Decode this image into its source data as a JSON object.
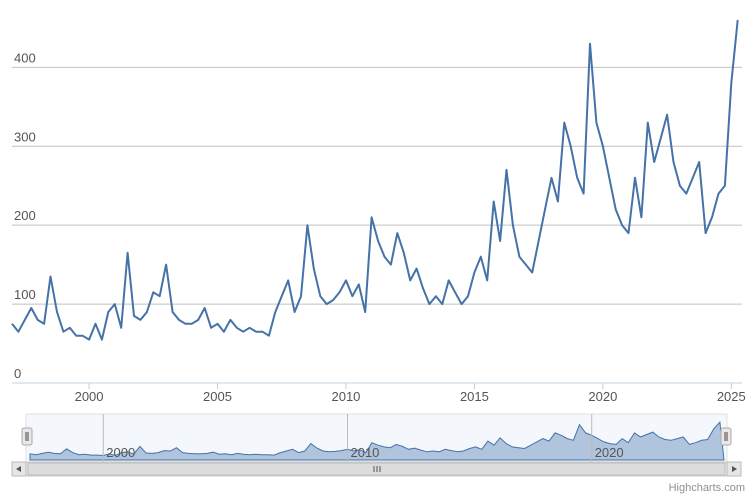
{
  "credits": "Highcharts.com",
  "colors": {
    "line": "#4572A7",
    "grid": "#C0C0C0",
    "navigatorFill": "#B0C4DE",
    "navigatorLine": "#4572A7"
  },
  "chart_data": {
    "type": "line",
    "title": "",
    "xlabel": "",
    "ylabel": "",
    "xlim": [
      "1997-01",
      "2025-06"
    ],
    "ylim": [
      0,
      460
    ],
    "y_ticks": [
      "0",
      "100",
      "200",
      "300",
      "400"
    ],
    "x_ticks": [
      "2000",
      "2005",
      "2010",
      "2015",
      "2020",
      "2025"
    ],
    "grid": true,
    "legend": "none",
    "series": [
      {
        "x": [
          1997.0,
          1997.25,
          1997.5,
          1997.75,
          1998.0,
          1998.25,
          1998.5,
          1998.75,
          1999.0,
          1999.25,
          1999.5,
          1999.75,
          2000.0,
          2000.25,
          2000.5,
          2000.75,
          2001.0,
          2001.25,
          2001.5,
          2001.75,
          2002.0,
          2002.25,
          2002.5,
          2002.75,
          2003.0,
          2003.25,
          2003.5,
          2003.75,
          2004.0,
          2004.25,
          2004.5,
          2004.75,
          2005.0,
          2005.25,
          2005.5,
          2005.75,
          2006.0,
          2006.25,
          2006.5,
          2006.75,
          2007.0,
          2007.25,
          2007.5,
          2007.75,
          2008.0,
          2008.25,
          2008.5,
          2008.75,
          2009.0,
          2009.25,
          2009.5,
          2009.75,
          2010.0,
          2010.25,
          2010.5,
          2010.75,
          2011.0,
          2011.25,
          2011.5,
          2011.75,
          2012.0,
          2012.25,
          2012.5,
          2012.75,
          2013.0,
          2013.25,
          2013.5,
          2013.75,
          2014.0,
          2014.25,
          2014.5,
          2014.75,
          2015.0,
          2015.25,
          2015.5,
          2015.75,
          2016.0,
          2016.25,
          2016.5,
          2016.75,
          2017.0,
          2017.25,
          2017.5,
          2017.75,
          2018.0,
          2018.25,
          2018.5,
          2018.75,
          2019.0,
          2019.25,
          2019.5,
          2019.75,
          2020.0,
          2020.25,
          2020.5,
          2020.75,
          2021.0,
          2021.25,
          2021.5,
          2021.75,
          2022.0,
          2022.25,
          2022.5,
          2022.75,
          2023.0,
          2023.25,
          2023.5,
          2023.75,
          2024.0,
          2024.25,
          2024.5,
          2024.75,
          2025.0,
          2025.25
        ],
        "y": [
          75,
          65,
          80,
          95,
          80,
          75,
          135,
          90,
          65,
          70,
          60,
          60,
          55,
          75,
          55,
          90,
          100,
          70,
          165,
          85,
          80,
          90,
          115,
          110,
          150,
          90,
          80,
          75,
          75,
          80,
          95,
          70,
          75,
          65,
          80,
          70,
          65,
          70,
          65,
          65,
          60,
          90,
          110,
          130,
          90,
          110,
          200,
          145,
          110,
          100,
          105,
          115,
          130,
          110,
          125,
          90,
          210,
          180,
          160,
          150,
          190,
          165,
          130,
          145,
          120,
          100,
          110,
          100,
          130,
          115,
          100,
          110,
          140,
          160,
          130,
          230,
          180,
          270,
          200,
          160,
          150,
          140,
          180,
          220,
          260,
          230,
          330,
          300,
          260,
          240,
          430,
          330,
          300,
          260,
          220,
          200,
          190,
          260,
          210,
          330,
          280,
          310,
          340,
          280,
          250,
          240,
          260,
          280,
          190,
          210,
          240,
          250,
          380,
          460
        ]
      }
    ]
  }
}
